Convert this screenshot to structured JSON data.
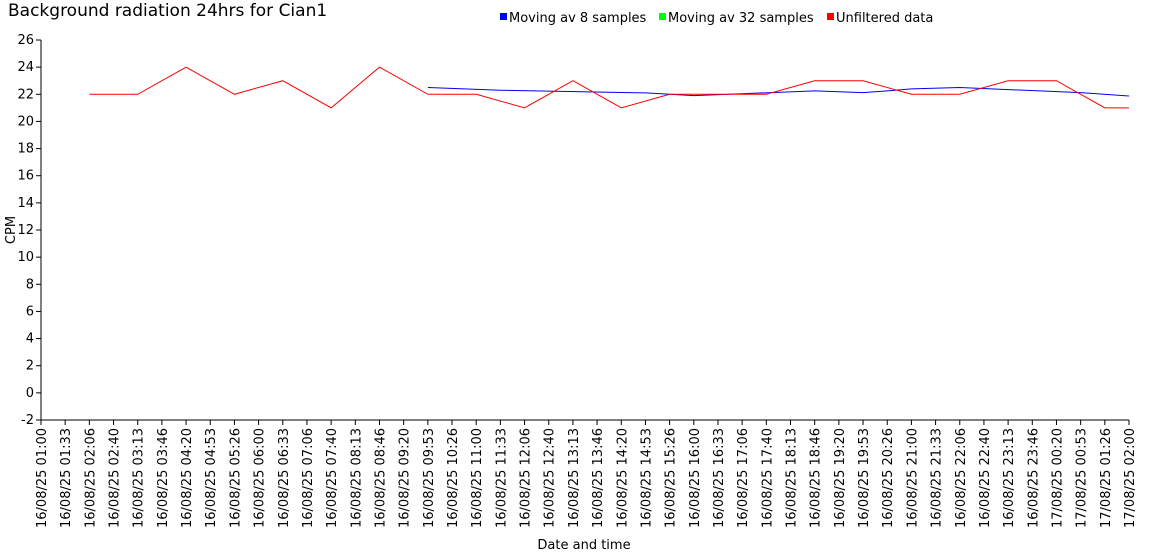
{
  "chart_data": {
    "type": "line",
    "title": "Background radiation 24hrs for Cian1",
    "xlabel": "Date and time",
    "ylabel": "CPM",
    "ylim": [
      -2,
      26
    ],
    "yticks": [
      -2,
      0,
      2,
      4,
      6,
      8,
      10,
      12,
      14,
      16,
      18,
      20,
      22,
      24,
      26
    ],
    "grid": false,
    "legend_placement": "top-right",
    "x_ticks": [
      "16/08/25 01:00",
      "16/08/25 01:33",
      "16/08/25 02:06",
      "16/08/25 02:40",
      "16/08/25 03:13",
      "16/08/25 03:46",
      "16/08/25 04:20",
      "16/08/25 04:53",
      "16/08/25 05:26",
      "16/08/25 06:00",
      "16/08/25 06:33",
      "16/08/25 07:06",
      "16/08/25 07:40",
      "16/08/25 08:13",
      "16/08/25 08:46",
      "16/08/25 09:20",
      "16/08/25 09:53",
      "16/08/25 10:26",
      "16/08/25 11:00",
      "16/08/25 11:33",
      "16/08/25 12:06",
      "16/08/25 12:40",
      "16/08/25 13:13",
      "16/08/25 13:46",
      "16/08/25 14:20",
      "16/08/25 14:53",
      "16/08/25 15:26",
      "16/08/25 16:00",
      "16/08/25 16:33",
      "16/08/25 17:06",
      "16/08/25 17:40",
      "16/08/25 18:13",
      "16/08/25 18:46",
      "16/08/25 19:20",
      "16/08/25 19:53",
      "16/08/25 20:26",
      "16/08/25 21:00",
      "16/08/25 21:33",
      "16/08/25 22:06",
      "16/08/25 22:40",
      "16/08/25 23:13",
      "16/08/25 23:46",
      "17/08/25 00:20",
      "17/08/25 00:53",
      "17/08/25 01:26",
      "17/08/25 02:00"
    ],
    "series": [
      {
        "name": "Moving av 8 samples",
        "color": "#0000ff",
        "points": [
          {
            "x": "16/08/25 09:53",
            "y": 22.5
          },
          {
            "x": "16/08/25 11:33",
            "y": 22.3
          },
          {
            "x": "16/08/25 14:53",
            "y": 22.1
          },
          {
            "x": "16/08/25 16:00",
            "y": 21.9
          },
          {
            "x": "16/08/25 18:46",
            "y": 22.25
          },
          {
            "x": "16/08/25 19:53",
            "y": 22.12
          },
          {
            "x": "16/08/25 20:26",
            "y": 22.25
          },
          {
            "x": "16/08/25 21:00",
            "y": 22.4
          },
          {
            "x": "16/08/25 22:06",
            "y": 22.5
          },
          {
            "x": "17/08/25 00:53",
            "y": 22.12
          },
          {
            "x": "17/08/25 02:00",
            "y": 21.87
          }
        ]
      },
      {
        "name": "Moving av 32 samples",
        "color": "#00ff00",
        "points": []
      },
      {
        "name": "Unfiltered data",
        "color": "#ff0000",
        "points": [
          {
            "x": "16/08/25 02:06",
            "y": 22
          },
          {
            "x": "16/08/25 03:13",
            "y": 22
          },
          {
            "x": "16/08/25 04:20",
            "y": 24
          },
          {
            "x": "16/08/25 05:26",
            "y": 22
          },
          {
            "x": "16/08/25 06:33",
            "y": 23
          },
          {
            "x": "16/08/25 07:40",
            "y": 21
          },
          {
            "x": "16/08/25 08:46",
            "y": 24
          },
          {
            "x": "16/08/25 09:53",
            "y": 22
          },
          {
            "x": "16/08/25 11:00",
            "y": 22
          },
          {
            "x": "16/08/25 12:06",
            "y": 21
          },
          {
            "x": "16/08/25 13:13",
            "y": 23
          },
          {
            "x": "16/08/25 14:20",
            "y": 21
          },
          {
            "x": "16/08/25 15:26",
            "y": 22
          },
          {
            "x": "16/08/25 16:33",
            "y": 22
          },
          {
            "x": "16/08/25 17:40",
            "y": 22
          },
          {
            "x": "16/08/25 18:46",
            "y": 23
          },
          {
            "x": "16/08/25 19:53",
            "y": 23
          },
          {
            "x": "16/08/25 21:00",
            "y": 22
          },
          {
            "x": "16/08/25 22:06",
            "y": 22
          },
          {
            "x": "16/08/25 23:13",
            "y": 23
          },
          {
            "x": "17/08/25 00:20",
            "y": 23
          },
          {
            "x": "17/08/25 01:26",
            "y": 21
          },
          {
            "x": "17/08/25 02:00",
            "y": 21
          }
        ]
      }
    ]
  }
}
